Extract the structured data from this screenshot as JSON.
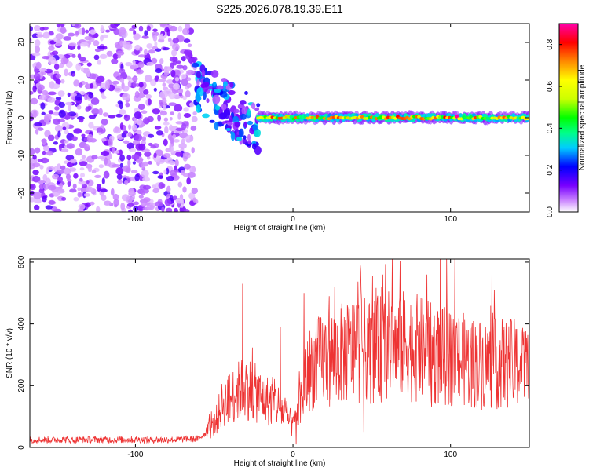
{
  "title": "S225.2026.078.19.39.E11",
  "chart_data": [
    {
      "type": "heatmap",
      "xlabel": "Height of straight line (km)",
      "ylabel": "Frequency (Hz)",
      "xlim": [
        -167,
        150
      ],
      "ylim": [
        -25,
        25
      ],
      "xticks": [
        -100,
        0,
        100
      ],
      "yticks": [
        -20,
        -10,
        0,
        10,
        20
      ],
      "colorbar": {
        "label": "Normalized spectral amplitude",
        "range": [
          0.0,
          0.9
        ],
        "ticks": [
          0.0,
          0.2,
          0.4,
          0.6,
          0.8
        ],
        "colormap": [
          "#ffffff",
          "#cc88ff",
          "#7700ff",
          "#0000ff",
          "#00ccff",
          "#00ff88",
          "#00ff00",
          "#ccff00",
          "#ffff00",
          "#ff8800",
          "#ff0000",
          "#ff00aa"
        ]
      },
      "regions": [
        {
          "x_range": [
            -167,
            -62
          ],
          "freq_range": [
            -25,
            25
          ],
          "amplitude": 0.15,
          "note": "noise"
        },
        {
          "x_range": [
            -62,
            -22
          ],
          "freq_range": [
            -12,
            10
          ],
          "amplitude": 0.35
        },
        {
          "x_range": [
            -22,
            150
          ],
          "freq_center": 0,
          "freq_halfwidth": 1.5,
          "amplitude": 0.8
        }
      ]
    },
    {
      "type": "line",
      "xlabel": "Height of straight line (km)",
      "ylabel": "SNR (10 * v/v)",
      "xlim": [
        -167,
        150
      ],
      "ylim": [
        0,
        610
      ],
      "xticks": [
        -100,
        0,
        100
      ],
      "yticks": [
        0,
        200,
        400,
        600
      ],
      "color": "#ee3333",
      "envelope": [
        {
          "x": -167,
          "y": 25
        },
        {
          "x": -140,
          "y": 25
        },
        {
          "x": -110,
          "y": 25
        },
        {
          "x": -80,
          "y": 25
        },
        {
          "x": -60,
          "y": 28
        },
        {
          "x": -50,
          "y": 70
        },
        {
          "x": -45,
          "y": 140
        },
        {
          "x": -40,
          "y": 160
        },
        {
          "x": -30,
          "y": 200
        },
        {
          "x": -20,
          "y": 160
        },
        {
          "x": -10,
          "y": 140
        },
        {
          "x": 0,
          "y": 70
        },
        {
          "x": 5,
          "y": 150
        },
        {
          "x": 10,
          "y": 250
        },
        {
          "x": 20,
          "y": 290
        },
        {
          "x": 30,
          "y": 300
        },
        {
          "x": 40,
          "y": 320
        },
        {
          "x": 50,
          "y": 310
        },
        {
          "x": 60,
          "y": 330
        },
        {
          "x": 70,
          "y": 330
        },
        {
          "x": 80,
          "y": 320
        },
        {
          "x": 90,
          "y": 300
        },
        {
          "x": 100,
          "y": 290
        },
        {
          "x": 110,
          "y": 280
        },
        {
          "x": 120,
          "y": 270
        },
        {
          "x": 130,
          "y": 270
        },
        {
          "x": 140,
          "y": 270
        },
        {
          "x": 150,
          "y": 260
        }
      ],
      "peaks": [
        {
          "x": -32,
          "y": 530
        },
        {
          "x": -8,
          "y": 390
        },
        {
          "x": 7,
          "y": 500
        },
        {
          "x": 23,
          "y": 490
        },
        {
          "x": 43,
          "y": 570
        },
        {
          "x": 57,
          "y": 560
        },
        {
          "x": 68,
          "y": 605
        },
        {
          "x": 85,
          "y": 560
        },
        {
          "x": 100,
          "y": 430
        },
        {
          "x": 127,
          "y": 380
        },
        {
          "x": 146,
          "y": 330
        }
      ],
      "dips": [
        {
          "x": 2,
          "y": 10
        },
        {
          "x": 45,
          "y": 50
        },
        {
          "x": 88,
          "y": 130
        },
        {
          "x": 140,
          "y": 160
        }
      ]
    }
  ]
}
